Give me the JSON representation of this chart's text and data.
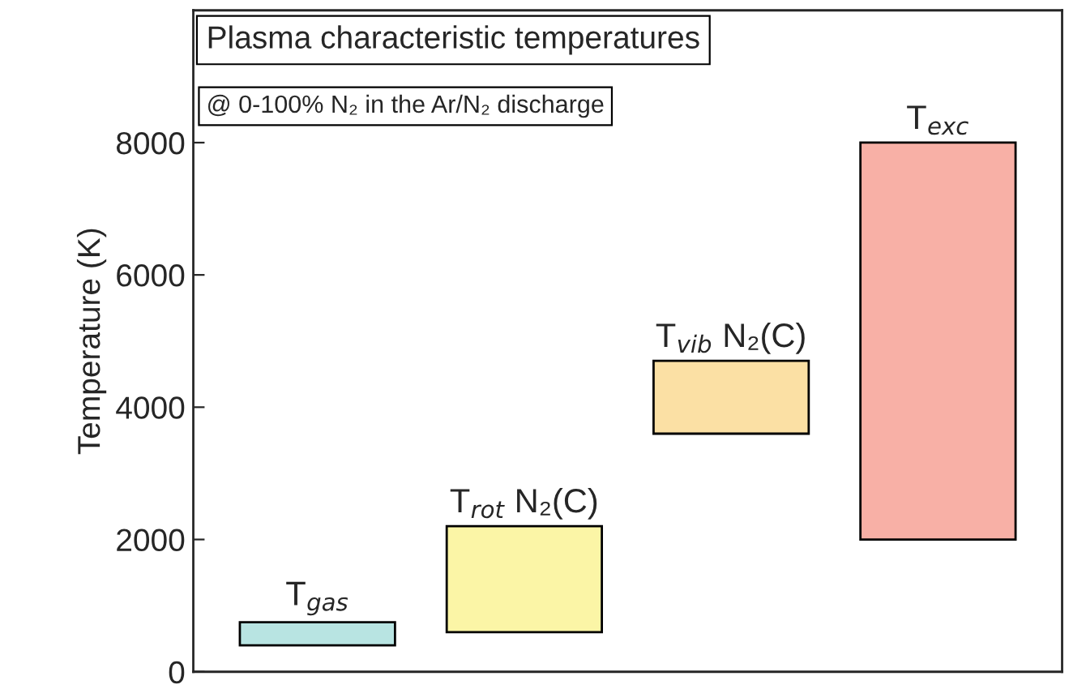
{
  "chart_data": {
    "type": "bar",
    "title": "Plasma characteristic temperatures",
    "subtitle": "@ 0-100% N₂ in the Ar/N₂ discharge",
    "ylabel": "Temperature (K)",
    "categories": [
      "T$_{gas}$",
      "T$_{rot}$ N₂(C)",
      "T$_{vib}$ N₂(C)",
      "T$_{exc}$"
    ],
    "base": [
      400,
      600,
      3600,
      2000
    ],
    "values": [
      350,
      1600,
      1100,
      6000
    ],
    "colors": [
      "#b8e4e2",
      "#fbf5a6",
      "#fbe0a4",
      "#f8b0a6"
    ],
    "ylim": [
      0,
      10000
    ],
    "yticks": [
      0,
      2000,
      4000,
      6000,
      8000
    ],
    "tick_labels": "y",
    "grid": false,
    "legend": false
  }
}
